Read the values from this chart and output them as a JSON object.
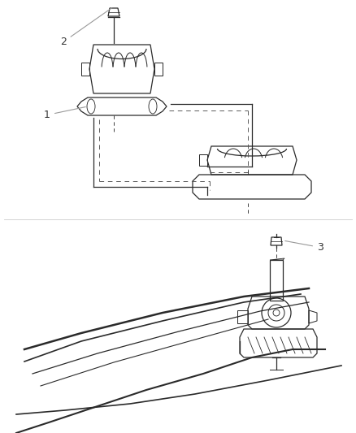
{
  "bg_color": "#ffffff",
  "line_color": "#2a2a2a",
  "label_color": "#333333",
  "dash_color": "#555555",
  "fig_width": 4.38,
  "fig_height": 5.33,
  "dpi": 100,
  "label_fontsize": 9,
  "lw": 0.9
}
